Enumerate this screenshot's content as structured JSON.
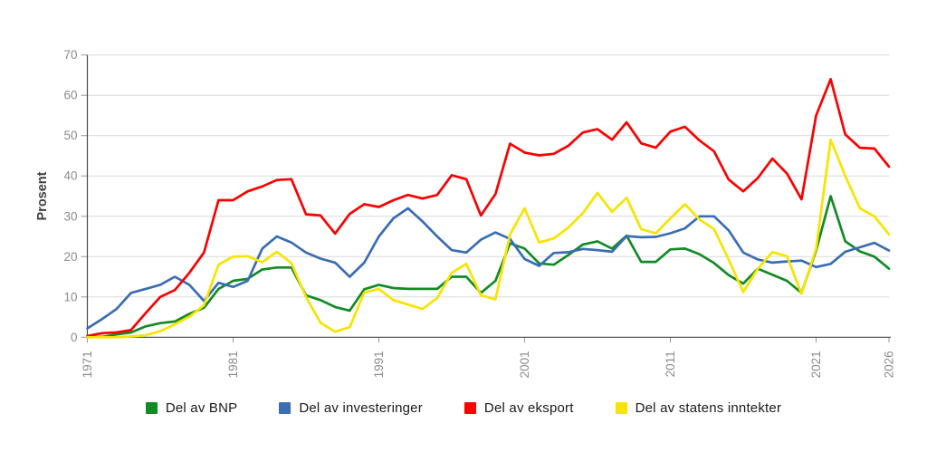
{
  "y_axis": {
    "label": "Prosent",
    "ticks": [
      0,
      10,
      20,
      30,
      40,
      50,
      60,
      70
    ],
    "min": 0,
    "max": 70
  },
  "x_axis": {
    "tick_years": [
      1971,
      1981,
      1991,
      2001,
      2011,
      2021,
      2026
    ],
    "start": 1971,
    "end": 2026
  },
  "colors": {
    "grid": "#d9d9d9",
    "axis_line": "#4a4a4a",
    "tick_mark": "#9a9a9a",
    "tick_label": "#8c8c8c",
    "axis_title": "#3f3f3f",
    "legend_text": "#1a1a1a",
    "background": "#ffffff"
  },
  "chart_data": {
    "type": "line",
    "title": "",
    "xlabel": "",
    "ylabel": "Prosent",
    "ylim": [
      0,
      70
    ],
    "grid": "horizontal",
    "legend_position": "bottom",
    "x": [
      1971,
      1972,
      1973,
      1974,
      1975,
      1976,
      1977,
      1978,
      1979,
      1980,
      1981,
      1982,
      1983,
      1984,
      1985,
      1986,
      1987,
      1988,
      1989,
      1990,
      1991,
      1992,
      1993,
      1994,
      1995,
      1996,
      1997,
      1998,
      1999,
      2000,
      2001,
      2002,
      2003,
      2004,
      2005,
      2006,
      2007,
      2008,
      2009,
      2010,
      2011,
      2012,
      2013,
      2014,
      2015,
      2016,
      2017,
      2018,
      2019,
      2020,
      2021,
      2022,
      2023,
      2024,
      2025,
      2026
    ],
    "series": [
      {
        "name": "Del av BNP",
        "color": "#128b25",
        "values": [
          0,
          0.1,
          0.7,
          1.2,
          2.7,
          3.5,
          3.9,
          5.8,
          7.3,
          12,
          14,
          14.5,
          16.8,
          17.3,
          17.3,
          10.4,
          9.2,
          7.5,
          6.6,
          11.9,
          13,
          12.2,
          12,
          12,
          12,
          15,
          15,
          11,
          14,
          23.3,
          22,
          18.3,
          18,
          20.4,
          23,
          23.8,
          22,
          25.2,
          18.7,
          18.7,
          21.8,
          22,
          20.6,
          18.4,
          15.4,
          13.3,
          17,
          15.5,
          14,
          11,
          21.5,
          35,
          23.8,
          21.3,
          20,
          17
        ]
      },
      {
        "name": "Del av investeringer",
        "color": "#3a6db4",
        "values": [
          2.2,
          4.5,
          7,
          11,
          12,
          13,
          15,
          13,
          9,
          13.5,
          12.5,
          14,
          22,
          25,
          23.5,
          21,
          19.5,
          18.5,
          15,
          18.5,
          25,
          29.5,
          32,
          28.7,
          25,
          21.6,
          21,
          24.2,
          26,
          24.4,
          19.4,
          17.7,
          20.9,
          21.1,
          21.9,
          21.6,
          21.2,
          25.1,
          24.8,
          24.9,
          25.8,
          27,
          30,
          30,
          26.5,
          21,
          19.3,
          18.5,
          18.8,
          19,
          17.4,
          18.2,
          21.2,
          22.3,
          23.4,
          21.5
        ]
      },
      {
        "name": "Del av eksport",
        "color": "#fb0000",
        "values": [
          0.3,
          1,
          1.2,
          1.8,
          6,
          10,
          11.7,
          16,
          21,
          34,
          34,
          36.2,
          37.4,
          39,
          39.2,
          30.5,
          30.2,
          25.7,
          30.6,
          33,
          32.3,
          34,
          35.3,
          34.4,
          35.3,
          40.2,
          39.2,
          30.2,
          35.5,
          48,
          45.8,
          45.1,
          45.5,
          47.5,
          50.8,
          51.6,
          49,
          53.3,
          48.1,
          47,
          51,
          52.2,
          48.8,
          46.1,
          39.1,
          36.2,
          39.5,
          44.3,
          40.6,
          34.2,
          55,
          64,
          50.3,
          47,
          46.8,
          42.3
        ]
      },
      {
        "name": "Del av statens inntekter",
        "color": "#f7e400",
        "values": [
          0,
          0,
          0,
          0.2,
          0.5,
          1.5,
          3.2,
          5.1,
          7.9,
          18,
          20,
          20.1,
          18.6,
          21.2,
          18.4,
          10,
          3.6,
          1.4,
          2.5,
          11.1,
          12,
          9.2,
          8.1,
          7,
          9.7,
          16,
          18.2,
          10.4,
          9.4,
          25.5,
          32,
          23.5,
          24.5,
          27.2,
          30.8,
          35.8,
          31.1,
          34.6,
          26.8,
          25.8,
          29.5,
          33,
          29.2,
          26.8,
          19.3,
          11.2,
          17,
          21.1,
          20.1,
          10.8,
          22,
          49,
          40,
          32,
          30,
          25.5
        ]
      }
    ]
  }
}
